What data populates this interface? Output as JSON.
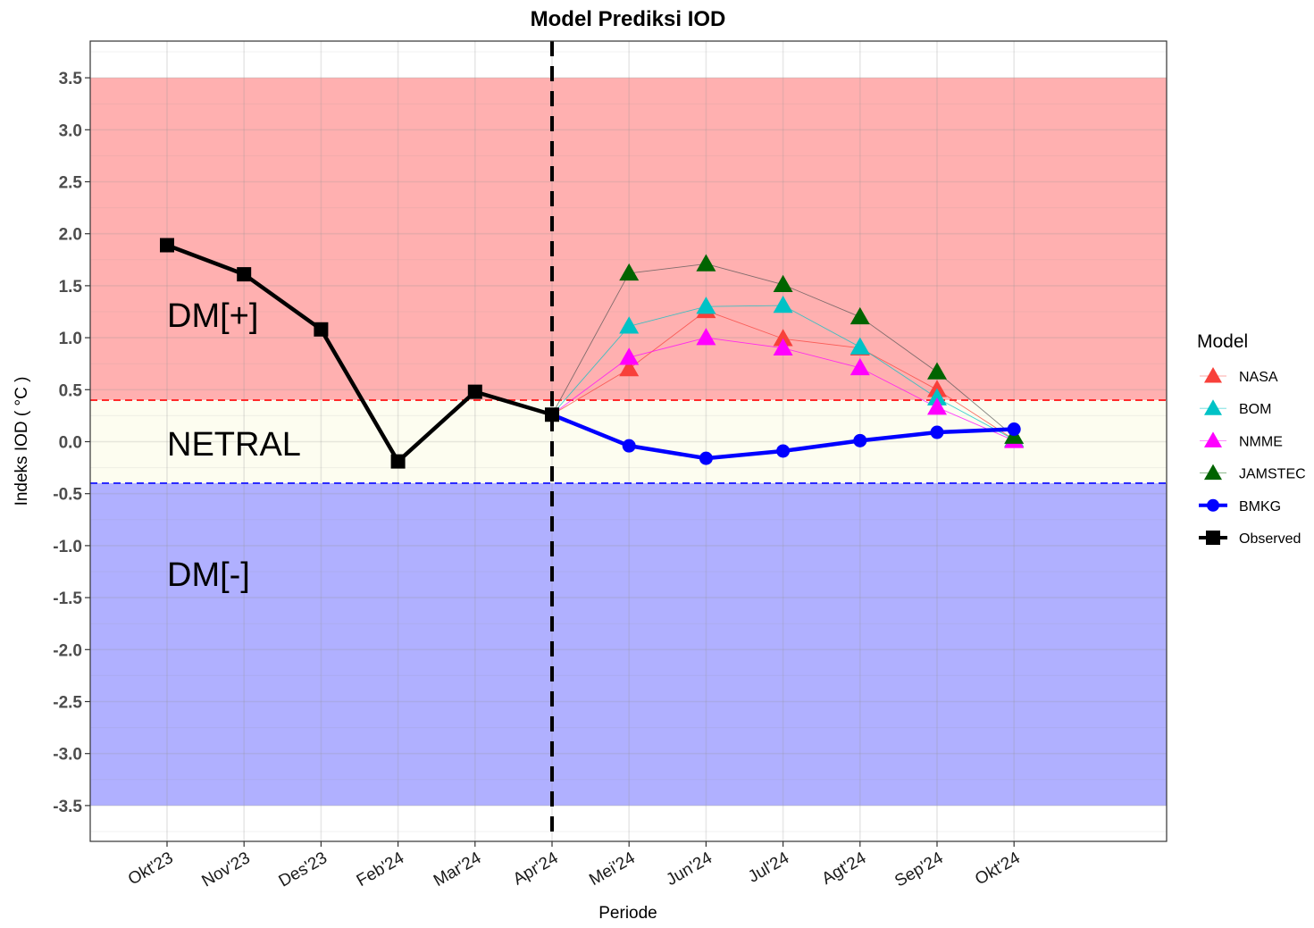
{
  "chart_data": {
    "type": "line",
    "title": "Model Prediksi IOD",
    "xlabel": "Periode",
    "ylabel": "Indeks IOD (  °C )",
    "ylim": [
      -3.85,
      3.85
    ],
    "categories": [
      "Okt'23",
      "Nov'23",
      "Des'23",
      "Feb'24",
      "Mar'24",
      "Apr'24",
      "Mei'24",
      "Jun'24",
      "Jul'24",
      "Agt'24",
      "Sep'24",
      "Okt'24"
    ],
    "yticks": [
      "3.5",
      "3.0",
      "2.5",
      "2.0",
      "1.5",
      "1.0",
      "0.5",
      "0.0",
      "-0.5",
      "-1.0",
      "-1.5",
      "-2.0",
      "-2.5",
      "-3.0",
      "-3.5"
    ],
    "grid": true,
    "legend_position": "right",
    "legend_title": "Model",
    "zones": [
      {
        "label": "DM[+]",
        "from": 0.4,
        "to": 3.5,
        "color": "#ffb0b0"
      },
      {
        "label": "NETRAL",
        "from": -0.4,
        "to": 0.4,
        "color": "#fdfdf0"
      },
      {
        "label": "DM[-]",
        "from": -3.5,
        "to": -0.4,
        "color": "#b0b0ff"
      }
    ],
    "thresholds": [
      {
        "value": 0.4,
        "color": "#ff2a2a"
      },
      {
        "value": -0.4,
        "color": "#2a2aff"
      }
    ],
    "forecast_start": "Apr'24",
    "series": [
      {
        "name": "NASA",
        "marker": "triangle",
        "color": "#f8403a",
        "x": [
          "Apr'24",
          "Mei'24",
          "Jun'24",
          "Jul'24",
          "Agt'24",
          "Sep'24",
          "Okt'24"
        ],
        "values": [
          0.26,
          0.7,
          1.26,
          0.99,
          0.9,
          0.5,
          0.02
        ]
      },
      {
        "name": "BOM",
        "marker": "triangle",
        "color": "#00c2c6",
        "x": [
          "Apr'24",
          "Mei'24",
          "Jun'24",
          "Jul'24",
          "Agt'24",
          "Sep'24",
          "Okt'24"
        ],
        "values": [
          0.26,
          1.11,
          1.3,
          1.31,
          0.91,
          0.42,
          0.02
        ]
      },
      {
        "name": "NMME",
        "marker": "triangle",
        "color": "#ff00ff",
        "x": [
          "Apr'24",
          "Mei'24",
          "Jun'24",
          "Jul'24",
          "Agt'24",
          "Sep'24",
          "Okt'24"
        ],
        "values": [
          0.26,
          0.81,
          1.0,
          0.9,
          0.71,
          0.33,
          0.01
        ]
      },
      {
        "name": "JAMSTEC",
        "marker": "triangle",
        "color": "#006400",
        "x": [
          "Apr'24",
          "Mei'24",
          "Jun'24",
          "Jul'24",
          "Agt'24",
          "Sep'24",
          "Okt'24"
        ],
        "values": [
          0.26,
          1.62,
          1.71,
          1.51,
          1.2,
          0.67,
          0.05
        ]
      },
      {
        "name": "BMKG",
        "marker": "circle",
        "color": "#0000ff",
        "x": [
          "Apr'24",
          "Mei'24",
          "Jun'24",
          "Jul'24",
          "Agt'24",
          "Sep'24",
          "Okt'24"
        ],
        "values": [
          0.26,
          -0.04,
          -0.16,
          -0.09,
          0.01,
          0.09,
          0.12
        ]
      },
      {
        "name": "Observed",
        "marker": "square",
        "color": "#000000",
        "x": [
          "Okt'23",
          "Nov'23",
          "Des'23",
          "Feb'24",
          "Mar'24",
          "Apr'24"
        ],
        "values": [
          1.89,
          1.61,
          1.08,
          -0.19,
          0.48,
          0.26
        ]
      }
    ]
  }
}
